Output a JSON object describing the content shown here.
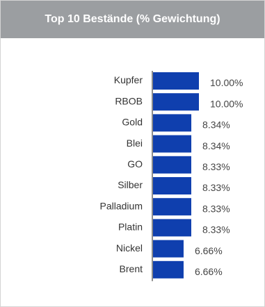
{
  "widget": {
    "title": "Top 10 Bestände (% Gewichtung)"
  },
  "chart_data": {
    "type": "bar",
    "orientation": "horizontal",
    "title": "Top 10 Bestände (% Gewichtung)",
    "xlabel": "",
    "ylabel": "",
    "categories": [
      "Kupfer",
      "RBOB",
      "Gold",
      "Blei",
      "GO",
      "Silber",
      "Palladium",
      "Platin",
      "Nickel",
      "Brent"
    ],
    "values": [
      10.0,
      10.0,
      8.34,
      8.34,
      8.33,
      8.33,
      8.33,
      8.33,
      6.66,
      6.66
    ],
    "value_labels": [
      "10.00%",
      "10.00%",
      "8.34%",
      "8.34%",
      "8.33%",
      "8.33%",
      "8.33%",
      "8.33%",
      "6.66%",
      "6.66%"
    ],
    "xlim": [
      0,
      10
    ],
    "bar_color": "#0f3fae",
    "axis_color": "#666666",
    "grid": false,
    "legend": "none"
  }
}
